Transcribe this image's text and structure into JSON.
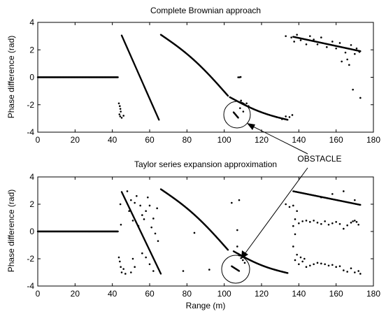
{
  "figure": {
    "background": "#ffffff",
    "ink": "#000000"
  },
  "chart_data": [
    {
      "type": "scatter",
      "title": "Complete Brownian approach",
      "xlabel": "",
      "ylabel": "Phase difference (rad)",
      "xlim": [
        0,
        180
      ],
      "ylim": [
        -4,
        4
      ],
      "xticks": [
        0,
        20,
        40,
        60,
        80,
        100,
        120,
        140,
        160,
        180
      ],
      "yticks": [
        -4,
        -2,
        0,
        2,
        4
      ],
      "grid": false,
      "marker_circle": {
        "x": 107,
        "y": -2.75,
        "description": "obstacle"
      },
      "segments": [
        {
          "x_start": 0,
          "x_end": 43,
          "y_start": 0,
          "y_end": 0,
          "marker": "dense"
        },
        {
          "x_start": 45,
          "x_end": 65,
          "y_start": 3.05,
          "y_end": -3.1,
          "marker": "dense"
        },
        {
          "x_start": 66,
          "x_end": 102,
          "y_start": 3.1,
          "y_end": -1.35,
          "curve": 0.35,
          "marker": "dense"
        },
        {
          "x_start": 103,
          "x_end": 134,
          "y_start": -1.45,
          "y_end": -3.1,
          "curve": -0.2,
          "marker": "dense"
        },
        {
          "x_start": 105,
          "x_end": 107.5,
          "y_start": -2.55,
          "y_end": -2.95,
          "marker": "dense"
        },
        {
          "x_start": 137,
          "x_end": 173,
          "y_start": 2.95,
          "y_end": 1.9,
          "marker": "dense"
        }
      ],
      "points": [
        [
          43.5,
          -1.9
        ],
        [
          44,
          -2.1
        ],
        [
          44.3,
          -2.3
        ],
        [
          44.5,
          -2.5
        ],
        [
          44.2,
          -2.85
        ],
        [
          45,
          -2.95
        ],
        [
          46,
          -2.8
        ],
        [
          43.8,
          -2.7
        ],
        [
          107.5,
          0.0
        ],
        [
          108.2,
          0.0
        ],
        [
          108.8,
          0.02
        ],
        [
          109,
          -1.7
        ],
        [
          112,
          -1.9
        ],
        [
          113,
          -2.1
        ],
        [
          128,
          -2.9
        ],
        [
          131,
          -3.05
        ],
        [
          133,
          -2.85
        ],
        [
          135,
          -2.9
        ],
        [
          136.5,
          -2.75
        ],
        [
          108.5,
          -2.25
        ],
        [
          110.2,
          -2.5
        ],
        [
          133,
          3.0
        ],
        [
          136,
          2.9
        ],
        [
          137.5,
          2.6
        ],
        [
          139,
          3.1
        ],
        [
          141,
          2.7
        ],
        [
          144,
          2.4
        ],
        [
          146,
          3.0
        ],
        [
          148,
          2.75
        ],
        [
          150,
          2.4
        ],
        [
          152,
          2.9
        ],
        [
          155,
          2.2
        ],
        [
          158,
          2.6
        ],
        [
          160,
          2.1
        ],
        [
          162,
          2.5
        ],
        [
          165,
          1.8
        ],
        [
          166,
          1.3
        ],
        [
          168,
          2.35
        ],
        [
          170,
          1.7
        ],
        [
          171,
          2.1
        ],
        [
          172.5,
          1.85
        ],
        [
          173,
          -1.5
        ],
        [
          169,
          -0.9
        ],
        [
          163,
          1.15
        ],
        [
          167,
          0.9
        ]
      ]
    },
    {
      "type": "scatter",
      "title": "Taylor series expansion approximation",
      "xlabel": "Range (m)",
      "ylabel": "Phase difference (rad)",
      "xlim": [
        0,
        180
      ],
      "ylim": [
        -4,
        4
      ],
      "xticks": [
        0,
        20,
        40,
        60,
        80,
        100,
        120,
        140,
        160,
        180
      ],
      "yticks": [
        -4,
        -2,
        0,
        2,
        4
      ],
      "grid": false,
      "marker_circle": {
        "x": 106,
        "y": -2.75,
        "description": "obstacle"
      },
      "segments": [
        {
          "x_start": 0,
          "x_end": 43,
          "y_start": 0,
          "y_end": 0,
          "marker": "dense"
        },
        {
          "x_start": 45,
          "x_end": 66,
          "y_start": 2.9,
          "y_end": -3.1,
          "marker": "dense"
        },
        {
          "x_start": 66,
          "x_end": 102,
          "y_start": 3.1,
          "y_end": -1.35,
          "curve": 0.35,
          "marker": "dense"
        },
        {
          "x_start": 105,
          "x_end": 134,
          "y_start": -1.45,
          "y_end": -3.05,
          "curve": -0.2,
          "marker": "dense"
        },
        {
          "x_start": 104,
          "x_end": 108,
          "y_start": -2.55,
          "y_end": -2.9,
          "marker": "dense"
        },
        {
          "x_start": 137,
          "x_end": 173,
          "y_start": 2.95,
          "y_end": 1.95,
          "marker": "dense"
        }
      ],
      "points": [
        [
          43.5,
          -1.9
        ],
        [
          44,
          -2.2
        ],
        [
          44.5,
          -2.6
        ],
        [
          45,
          -3.0
        ],
        [
          46,
          -2.75
        ],
        [
          47,
          -3.1
        ],
        [
          44.3,
          2.0
        ],
        [
          44.6,
          0.5
        ],
        [
          48,
          2.95
        ],
        [
          50,
          2.3
        ],
        [
          49,
          1.5
        ],
        [
          52,
          2.1
        ],
        [
          51,
          0.8
        ],
        [
          53,
          2.6
        ],
        [
          55,
          1.9
        ],
        [
          56,
          1.2
        ],
        [
          54,
          0.4
        ],
        [
          57,
          0.9
        ],
        [
          58,
          1.5
        ],
        [
          59,
          2.5
        ],
        [
          60,
          1.9
        ],
        [
          61,
          0.3
        ],
        [
          62,
          0.95
        ],
        [
          63,
          -0.15
        ],
        [
          64,
          1.7
        ],
        [
          64.5,
          -0.7
        ],
        [
          56,
          -1.6
        ],
        [
          58,
          -1.9
        ],
        [
          60,
          -2.4
        ],
        [
          62,
          -2.9
        ],
        [
          52,
          -2.6
        ],
        [
          50,
          -3.0
        ],
        [
          51,
          -2.0
        ],
        [
          84,
          -0.1
        ],
        [
          78,
          -2.9
        ],
        [
          92,
          -2.8
        ],
        [
          107,
          0.1
        ],
        [
          104,
          2.1
        ],
        [
          108,
          2.3
        ],
        [
          107,
          -1.1
        ],
        [
          108,
          -1.75
        ],
        [
          109,
          -1.95
        ],
        [
          110,
          -2.1
        ],
        [
          111,
          -2.3
        ],
        [
          133,
          2.0
        ],
        [
          135,
          1.8
        ],
        [
          137,
          1.9
        ],
        [
          139,
          1.5
        ],
        [
          138,
          0.9
        ],
        [
          137,
          0.4
        ],
        [
          138,
          -0.2
        ],
        [
          137,
          -1.1
        ],
        [
          139,
          -1.7
        ],
        [
          141,
          -1.9
        ],
        [
          138,
          -2.1
        ],
        [
          140,
          -2.4
        ],
        [
          142,
          -2.2
        ],
        [
          144,
          -2.6
        ],
        [
          143,
          -2.0
        ],
        [
          140,
          0.6
        ],
        [
          142,
          0.75
        ],
        [
          144,
          0.8
        ],
        [
          146,
          0.7
        ],
        [
          148,
          0.8
        ],
        [
          150,
          0.65
        ],
        [
          152,
          0.55
        ],
        [
          154,
          0.75
        ],
        [
          156,
          0.5
        ],
        [
          158,
          0.6
        ],
        [
          160,
          0.7
        ],
        [
          162,
          0.55
        ],
        [
          164,
          0.2
        ],
        [
          166,
          0.45
        ],
        [
          168,
          0.65
        ],
        [
          170,
          0.8
        ],
        [
          172,
          0.5
        ],
        [
          171,
          0.7
        ],
        [
          169,
          0.75
        ],
        [
          146,
          -2.5
        ],
        [
          148,
          -2.4
        ],
        [
          150,
          -2.3
        ],
        [
          152,
          -2.35
        ],
        [
          154,
          -2.4
        ],
        [
          156,
          -2.5
        ],
        [
          158,
          -2.45
        ],
        [
          160,
          -2.6
        ],
        [
          162,
          -2.55
        ],
        [
          164,
          -2.85
        ],
        [
          166,
          -2.95
        ],
        [
          168,
          -2.7
        ],
        [
          170,
          -3.0
        ],
        [
          172,
          -2.9
        ],
        [
          173,
          -3.1
        ],
        [
          158,
          2.75
        ],
        [
          164,
          2.95
        ],
        [
          152,
          2.5
        ],
        [
          170,
          2.3
        ]
      ]
    }
  ],
  "annotation": {
    "label": "OBSTACLE"
  }
}
